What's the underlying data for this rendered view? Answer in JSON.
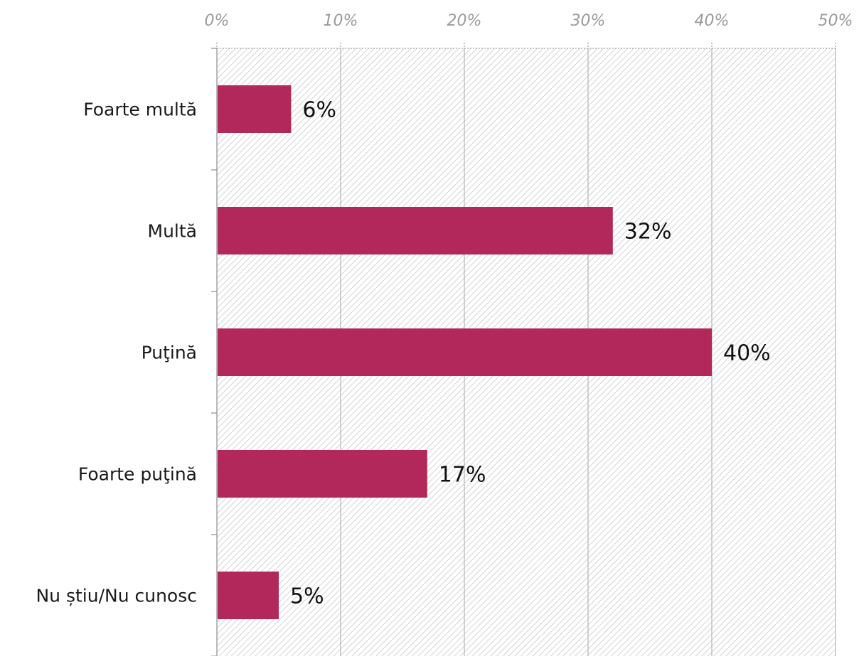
{
  "chart_data": {
    "type": "bar",
    "orientation": "horizontal",
    "categories": [
      "Foarte multă",
      "Multă",
      "Puţină",
      "Foarte puţină",
      "Nu știu/Nu cunosc"
    ],
    "values": [
      6,
      32,
      40,
      17,
      5
    ],
    "data_labels": [
      "6%",
      "32%",
      "40%",
      "17%",
      "5%"
    ],
    "x_ticks": [
      0,
      10,
      20,
      30,
      40,
      50
    ],
    "x_tick_labels": [
      "0%",
      "10%",
      "20%",
      "30%",
      "40%",
      "50%"
    ],
    "xlim": [
      0,
      50
    ],
    "x_axis_position": "top",
    "grid": "vertical",
    "plot_background": "diagonal-hatch",
    "title": "",
    "xlabel": "",
    "ylabel": ""
  },
  "colors": {
    "bar": "#B3285A",
    "hatch": "#c8c8c8",
    "axis": "#8c8c8c",
    "tick_text": "#9a9a9a",
    "label_text": "#1a1a1a"
  }
}
